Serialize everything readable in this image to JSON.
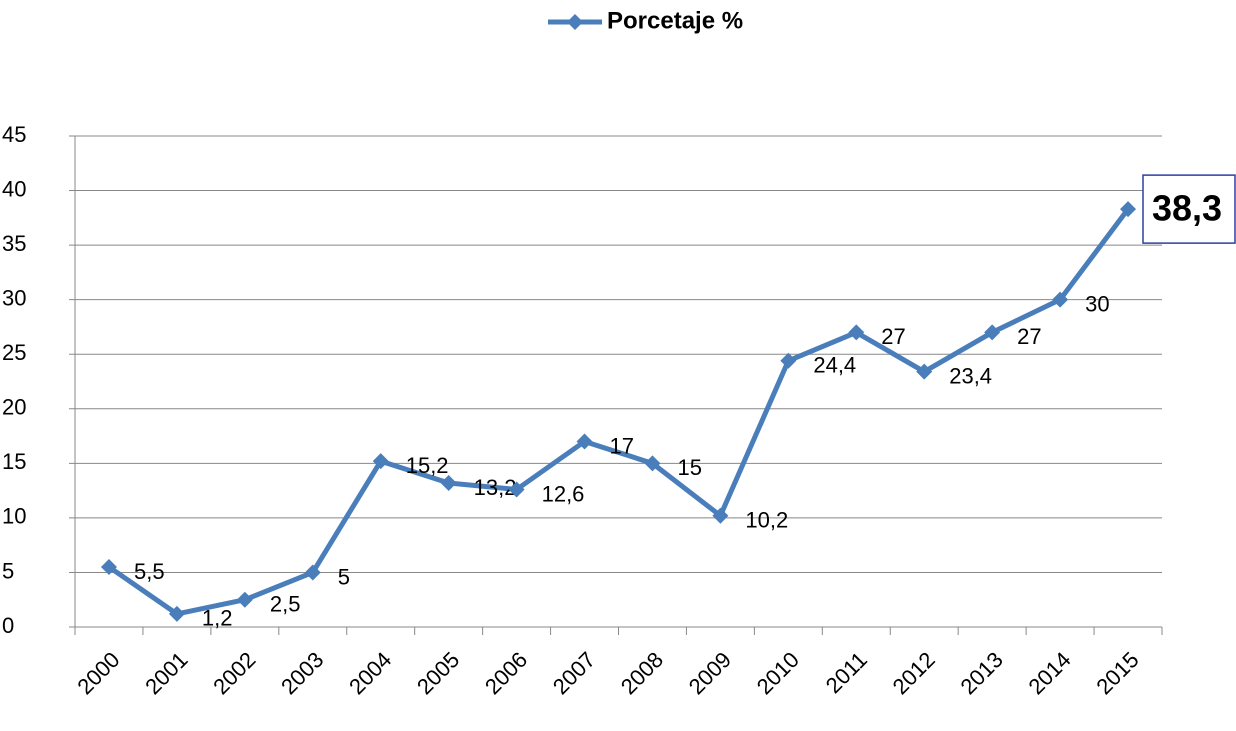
{
  "chart_data": {
    "type": "line",
    "categories": [
      "2000",
      "2001",
      "2002",
      "2003",
      "2004",
      "2005",
      "2006",
      "2007",
      "2008",
      "2009",
      "2010",
      "2011",
      "2012",
      "2013",
      "2014",
      "2015"
    ],
    "series": [
      {
        "name": "Porcetaje %",
        "color": "#4a7ebb",
        "values": [
          5.5,
          1.2,
          2.5,
          5,
          15.2,
          13.2,
          12.6,
          17,
          15,
          10.2,
          24.4,
          27,
          23.4,
          27,
          30,
          38.3
        ],
        "value_labels": [
          "5,5",
          "1,2",
          "2,5",
          "5",
          "15,2",
          "13,2",
          "12,6",
          "17",
          "15",
          "10,2",
          "24,4",
          "27",
          "23,4",
          "27",
          "30",
          "38,3"
        ]
      }
    ],
    "ylim": [
      0,
      45
    ],
    "yticks": [
      0,
      5,
      10,
      15,
      20,
      25,
      30,
      35,
      40,
      45
    ],
    "grid": true,
    "legend": "top"
  }
}
